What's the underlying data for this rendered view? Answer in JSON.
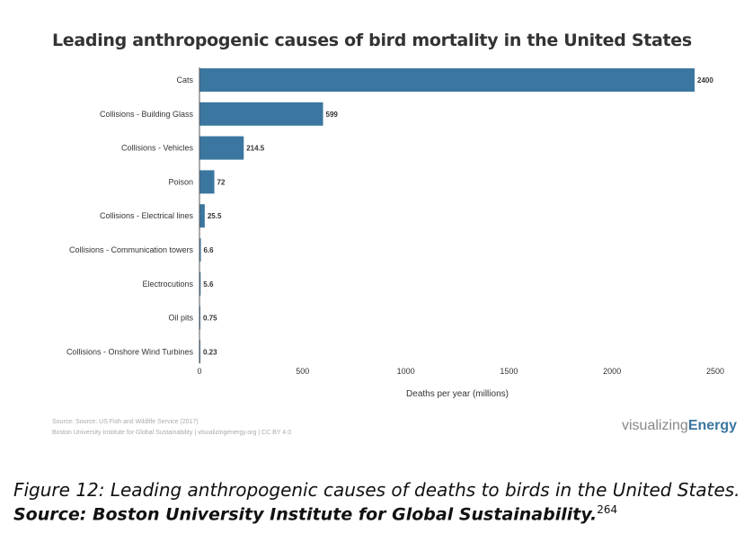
{
  "chart_data": {
    "type": "bar",
    "orientation": "horizontal",
    "title": "Leading anthropogenic causes of bird mortality in the United States",
    "categories": [
      "Cats",
      "Collisions - Building Glass",
      "Collisions - Vehicles",
      "Poison",
      "Collisions - Electrical lines",
      "Collisions - Communication towers",
      "Electrocutions",
      "Oil pits",
      "Collisions - Onshore Wind Turbines"
    ],
    "values": [
      2400,
      599,
      214.5,
      72,
      25.5,
      6.6,
      5.6,
      0.75,
      0.23
    ],
    "value_labels": [
      "2400",
      "599",
      "214.5",
      "72",
      "25.5",
      "6.6",
      "5.6",
      "0.75",
      "0.23"
    ],
    "xlabel": "Deaths per year (millions)",
    "xticks": [
      0,
      500,
      1000,
      1500,
      2000,
      2500
    ],
    "xlim": [
      0,
      2500
    ],
    "bar_color": "#3a76a0"
  },
  "source_line1": "Source: Source: US Fish and Wildlife Service (2017)",
  "source_line2": "Boston University Institute for Global Sustainability | visualizingenergy.org | CC BY 4.0",
  "logo_light": "visualizing",
  "logo_bold": "Energy",
  "caption": "Figure 12: Leading anthropogenic causes of deaths to birds in the United States.",
  "caption_source": "Source: Boston University Institute for Global Sustainability.",
  "caption_ref": "264"
}
